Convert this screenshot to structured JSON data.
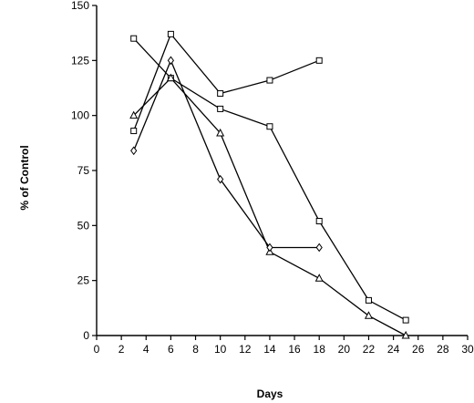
{
  "chart_data": {
    "type": "line",
    "title": "",
    "xlabel": "Days",
    "ylabel": "% of Control",
    "xlim": [
      0,
      30
    ],
    "ylim": [
      0,
      150
    ],
    "x_ticks": [
      0,
      2,
      4,
      6,
      8,
      10,
      12,
      14,
      16,
      18,
      20,
      22,
      24,
      26,
      28,
      30
    ],
    "y_ticks": [
      0,
      25,
      50,
      75,
      100,
      125,
      150
    ],
    "grid": false,
    "legend": "none",
    "series": [
      {
        "marker": "square",
        "points": [
          [
            3,
            93
          ],
          [
            6,
            137
          ],
          [
            10,
            110
          ],
          [
            14,
            116
          ],
          [
            18,
            125
          ]
        ]
      },
      {
        "marker": "square",
        "points": [
          [
            3,
            135
          ],
          [
            6,
            117
          ],
          [
            10,
            103
          ],
          [
            14,
            95
          ],
          [
            18,
            52
          ],
          [
            22,
            16
          ],
          [
            25,
            7
          ]
        ]
      },
      {
        "marker": "triangle",
        "points": [
          [
            3,
            100
          ],
          [
            6,
            117
          ],
          [
            10,
            92
          ],
          [
            14,
            38
          ],
          [
            18,
            26
          ],
          [
            22,
            9
          ],
          [
            25,
            0
          ]
        ]
      },
      {
        "marker": "diamond",
        "points": [
          [
            3,
            84
          ],
          [
            6,
            125
          ],
          [
            10,
            71
          ],
          [
            14,
            40
          ],
          [
            18,
            40
          ]
        ]
      }
    ]
  }
}
